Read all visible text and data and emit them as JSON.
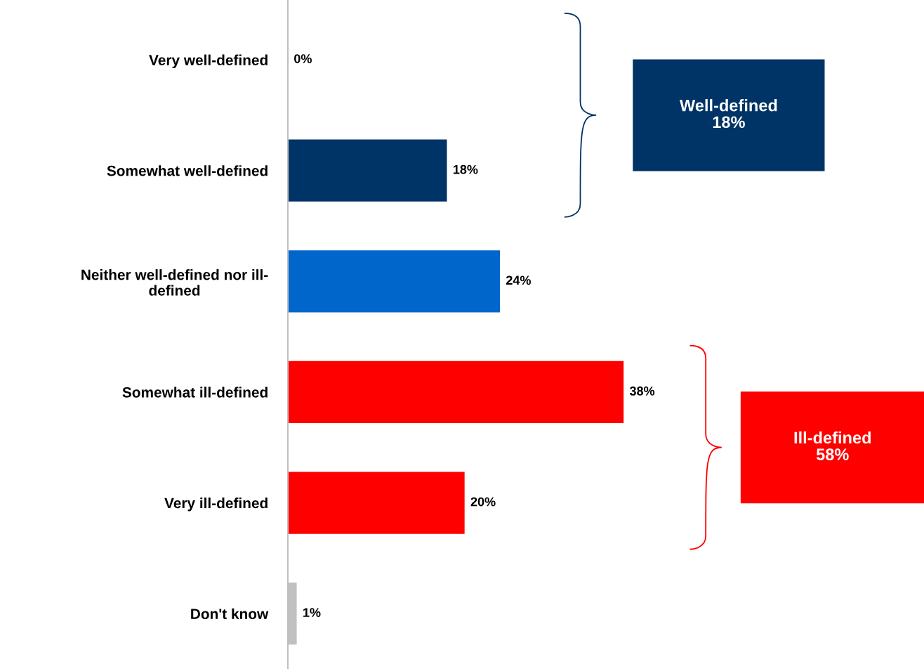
{
  "chart_data": {
    "type": "bar",
    "orientation": "horizontal",
    "categories": [
      "Very well-defined",
      "Somewhat well-defined",
      "Neither well-defined nor ill-\ndefined",
      "Somewhat ill-defined",
      "Very ill-defined",
      "Don't know"
    ],
    "values": [
      0,
      18,
      24,
      38,
      20,
      1
    ],
    "colors": [
      "#003366",
      "#003366",
      "#0066cc",
      "#ff0000",
      "#ff0000",
      "#c0c0c0"
    ],
    "value_labels": [
      "0%",
      "18%",
      "24%",
      "38%",
      "20%",
      "1%"
    ],
    "xlim": [
      0,
      72
    ],
    "tick_labels": "y",
    "grid": false,
    "legend": false,
    "annotations": [
      "Well-defined\n18%",
      "Ill-defined\n58%"
    ]
  }
}
